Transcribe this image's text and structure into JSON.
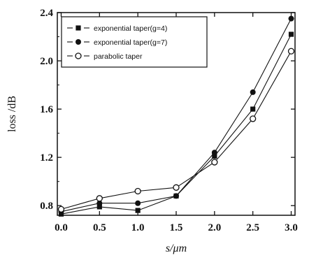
{
  "chart_data": {
    "type": "line",
    "xlabel": "s/μm",
    "ylabel": "loss /dB",
    "xlim": [
      -0.05,
      3.05
    ],
    "ylim": [
      0.72,
      2.4
    ],
    "xticks": [
      "0.0",
      "0.5",
      "1.0",
      "1.5",
      "2.0",
      "2.5",
      "3.0"
    ],
    "yticks": [
      "0.8",
      "1.2",
      "1.6",
      "2.0",
      "2.4"
    ],
    "legend_position": "top-left",
    "grid": false,
    "x": [
      0.0,
      0.5,
      1.0,
      1.5,
      2.0,
      2.5,
      3.0
    ],
    "series": [
      {
        "name": "exponential taper(g=4)",
        "marker": "square",
        "values": [
          0.73,
          0.79,
          0.76,
          0.88,
          1.21,
          1.6,
          2.22
        ]
      },
      {
        "name": "exponential taper(g=7)",
        "marker": "circle",
        "values": [
          0.75,
          0.82,
          0.82,
          0.88,
          1.24,
          1.74,
          2.35
        ]
      },
      {
        "name": "parabolic taper",
        "marker": "open-circle",
        "values": [
          0.77,
          0.86,
          0.92,
          0.95,
          1.16,
          1.52,
          2.08
        ]
      }
    ]
  }
}
